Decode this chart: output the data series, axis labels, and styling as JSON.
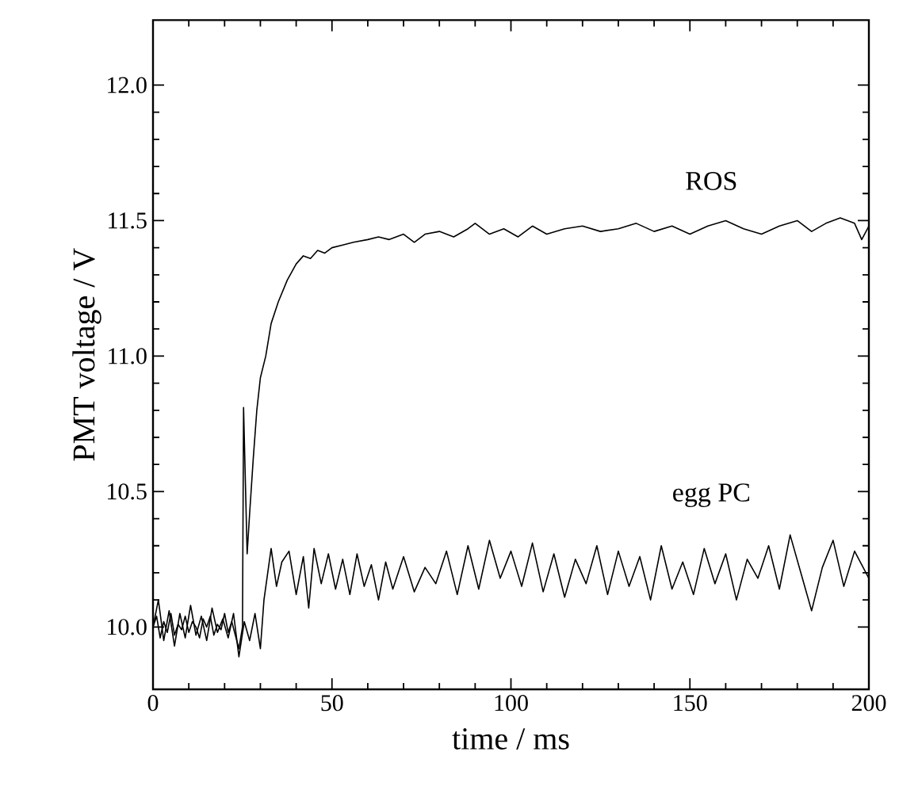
{
  "chart_data": {
    "type": "line",
    "xlabel": "time / ms",
    "ylabel": "PMT voltage / V",
    "xlim": [
      0,
      200
    ],
    "ylim": [
      9.77,
      12.24
    ],
    "xticks": [
      0,
      50,
      100,
      150,
      200
    ],
    "yticks": [
      {
        "value": 10.0,
        "label": "10.0"
      },
      {
        "value": 10.5,
        "label": "10.5"
      },
      {
        "value": 11.0,
        "label": "11.0"
      },
      {
        "value": 11.5,
        "label": "11.5"
      },
      {
        "value": 12.0,
        "label": "12.0"
      }
    ],
    "grid": false,
    "marker": "none",
    "line_style": "solid",
    "series": [
      {
        "name": "ROS",
        "color": "#000000",
        "x": [
          0,
          1,
          2,
          3,
          4,
          5,
          6,
          7,
          8,
          9,
          10,
          11,
          12,
          13,
          14,
          15,
          16,
          17,
          18,
          19,
          20,
          21,
          22,
          23,
          24,
          25,
          25.3,
          26.3,
          27,
          28,
          29,
          30,
          31.5,
          33,
          35,
          37.5,
          40,
          42,
          44,
          46,
          48,
          50,
          53,
          56,
          60,
          63,
          66,
          70,
          73,
          76,
          80,
          84,
          88,
          90,
          94,
          98,
          102,
          106,
          110,
          115,
          120,
          125,
          130,
          135,
          140,
          145,
          150,
          155,
          160,
          165,
          170,
          175,
          180,
          184,
          188,
          192,
          196,
          198,
          200
        ],
        "values": [
          10.0,
          10.04,
          9.96,
          10.02,
          9.98,
          10.05,
          9.97,
          10.01,
          9.99,
          10.04,
          9.98,
          10.02,
          10.0,
          9.96,
          10.03,
          10.0,
          10.04,
          9.97,
          10.01,
          9.99,
          10.05,
          9.98,
          10.02,
          9.97,
          9.92,
          10.0,
          10.81,
          10.27,
          10.42,
          10.62,
          10.8,
          10.92,
          11.0,
          11.12,
          11.2,
          11.28,
          11.34,
          11.37,
          11.36,
          11.39,
          11.38,
          11.4,
          11.41,
          11.42,
          11.43,
          11.44,
          11.43,
          11.45,
          11.42,
          11.45,
          11.46,
          11.44,
          11.47,
          11.49,
          11.45,
          11.47,
          11.44,
          11.48,
          11.45,
          11.47,
          11.48,
          11.46,
          11.47,
          11.49,
          11.46,
          11.48,
          11.45,
          11.48,
          11.5,
          11.47,
          11.45,
          11.48,
          11.5,
          11.46,
          11.49,
          11.51,
          11.49,
          11.43,
          11.48
        ]
      },
      {
        "name": "egg PC",
        "color": "#000000",
        "x": [
          0,
          1.5,
          3,
          4.5,
          6,
          7.5,
          9,
          10.5,
          12,
          13.5,
          15,
          16.5,
          18,
          19.5,
          21,
          22.5,
          24,
          25.5,
          27,
          28.5,
          30,
          31,
          33,
          34.5,
          36,
          38,
          40,
          42,
          43.5,
          45,
          47,
          49,
          51,
          53,
          55,
          57,
          59,
          61,
          63,
          65,
          67,
          70,
          73,
          76,
          79,
          82,
          85,
          88,
          91,
          94,
          97,
          100,
          103,
          106,
          109,
          112,
          115,
          118,
          121,
          124,
          127,
          130,
          133,
          136,
          139,
          142,
          145,
          148,
          151,
          154,
          157,
          160,
          163,
          166,
          169,
          172,
          175,
          178,
          181,
          184,
          187,
          190,
          193,
          196,
          200
        ],
        "values": [
          10.0,
          10.1,
          9.95,
          10.06,
          9.93,
          10.05,
          9.96,
          10.08,
          9.97,
          10.04,
          9.95,
          10.07,
          9.98,
          10.03,
          9.96,
          10.05,
          9.89,
          10.02,
          9.95,
          10.05,
          9.92,
          10.1,
          10.29,
          10.15,
          10.24,
          10.28,
          10.12,
          10.26,
          10.07,
          10.29,
          10.16,
          10.27,
          10.14,
          10.25,
          10.12,
          10.27,
          10.15,
          10.23,
          10.1,
          10.24,
          10.14,
          10.26,
          10.13,
          10.22,
          10.16,
          10.28,
          10.12,
          10.3,
          10.14,
          10.32,
          10.18,
          10.28,
          10.15,
          10.31,
          10.13,
          10.27,
          10.11,
          10.25,
          10.16,
          10.3,
          10.12,
          10.28,
          10.15,
          10.26,
          10.1,
          10.3,
          10.14,
          10.24,
          10.12,
          10.29,
          10.16,
          10.27,
          10.1,
          10.25,
          10.18,
          10.3,
          10.14,
          10.34,
          10.2,
          10.06,
          10.22,
          10.32,
          10.15,
          10.28,
          10.18
        ]
      }
    ]
  }
}
